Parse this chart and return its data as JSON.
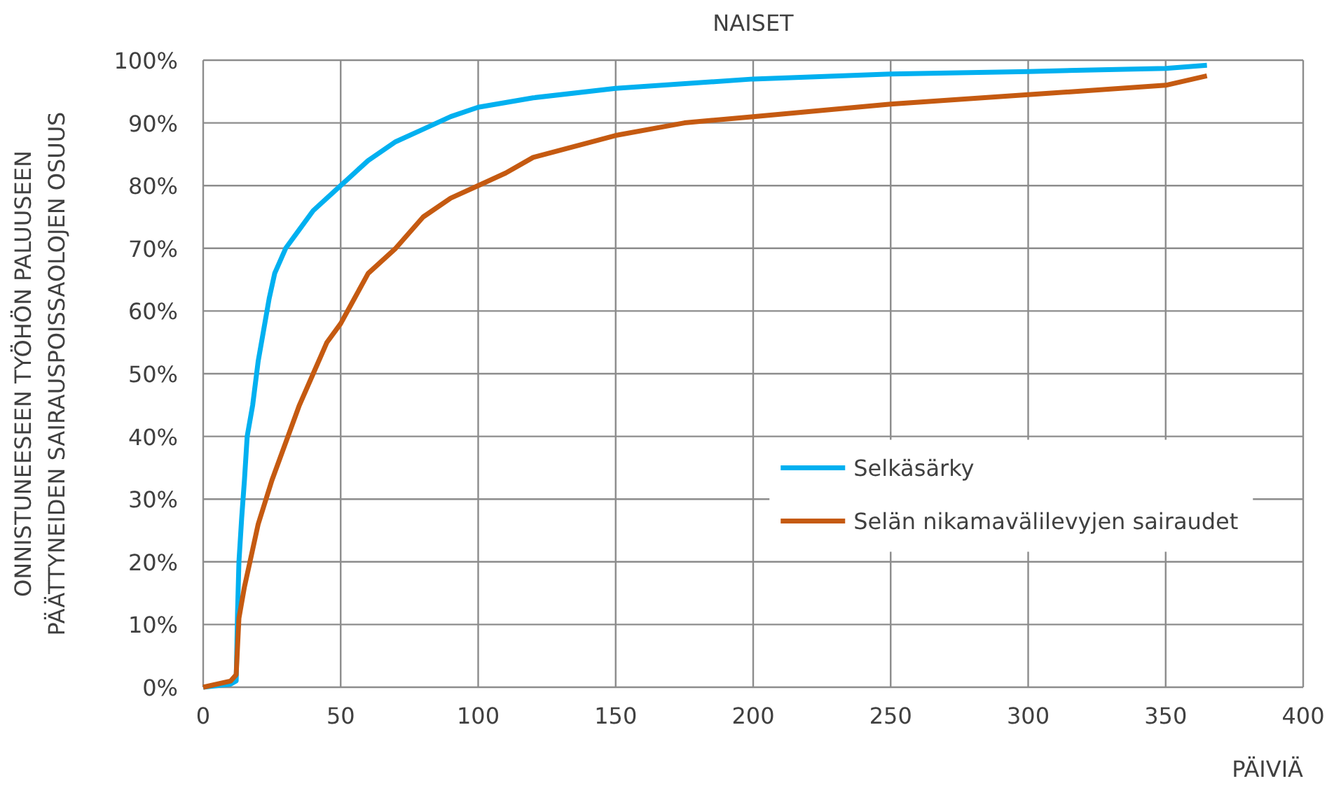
{
  "chart_data": {
    "type": "line",
    "title": "NAISET",
    "xlabel": "PÄIVIÄ",
    "ylabel": "ONNISTUNEESEEN TYÖHÖN PALUUSEEN\nPÄÄTTYNEIDEN SAIRAUSPOISSAOLOJEN OSUUS",
    "xlim": [
      0,
      400
    ],
    "xticks": [
      0,
      50,
      100,
      150,
      200,
      250,
      300,
      350,
      400
    ],
    "ylim": [
      0,
      100
    ],
    "yticks": [
      {
        "value": 0,
        "label": "0%"
      },
      {
        "value": 10,
        "label": "10%"
      },
      {
        "value": 20,
        "label": "20%"
      },
      {
        "value": 30,
        "label": "30%"
      },
      {
        "value": 40,
        "label": "40%"
      },
      {
        "value": 50,
        "label": "50%"
      },
      {
        "value": 60,
        "label": "60%"
      },
      {
        "value": 70,
        "label": "70%"
      },
      {
        "value": 80,
        "label": "80%"
      },
      {
        "value": 90,
        "label": "90%"
      },
      {
        "value": 100,
        "label": "100%"
      }
    ],
    "grid": true,
    "legend": "right",
    "marker": "none",
    "line_style": "solid",
    "series": [
      {
        "name": "Selkäsärky",
        "color": "#00b0f0",
        "x": [
          0,
          10,
          12,
          12.5,
          13,
          14,
          15,
          16,
          18,
          20,
          22,
          24,
          26,
          30,
          35,
          40,
          50,
          60,
          70,
          80,
          90,
          100,
          120,
          150,
          200,
          250,
          300,
          350,
          365
        ],
        "values": [
          0,
          0.5,
          1,
          12,
          20,
          27,
          33,
          40,
          45,
          52,
          57,
          62,
          66,
          70,
          73,
          76,
          80,
          84,
          87,
          89,
          91,
          92.5,
          94,
          95.5,
          97,
          97.8,
          98.2,
          98.7,
          99.2
        ]
      },
      {
        "name": "Selän nikamavälilevyjen sairaudet",
        "color": "#c55a11",
        "x": [
          0,
          10,
          12,
          13,
          15,
          18,
          20,
          25,
          30,
          35,
          40,
          45,
          50,
          55,
          60,
          70,
          80,
          90,
          100,
          110,
          120,
          150,
          175,
          200,
          250,
          300,
          350,
          360,
          365
        ],
        "values": [
          0,
          1,
          2,
          11,
          16,
          22,
          26,
          33,
          39,
          45,
          50,
          55,
          58,
          62,
          66,
          70,
          75,
          78,
          80,
          82,
          84.5,
          88,
          90,
          91,
          93,
          94.5,
          96,
          97,
          97.5
        ]
      }
    ]
  }
}
